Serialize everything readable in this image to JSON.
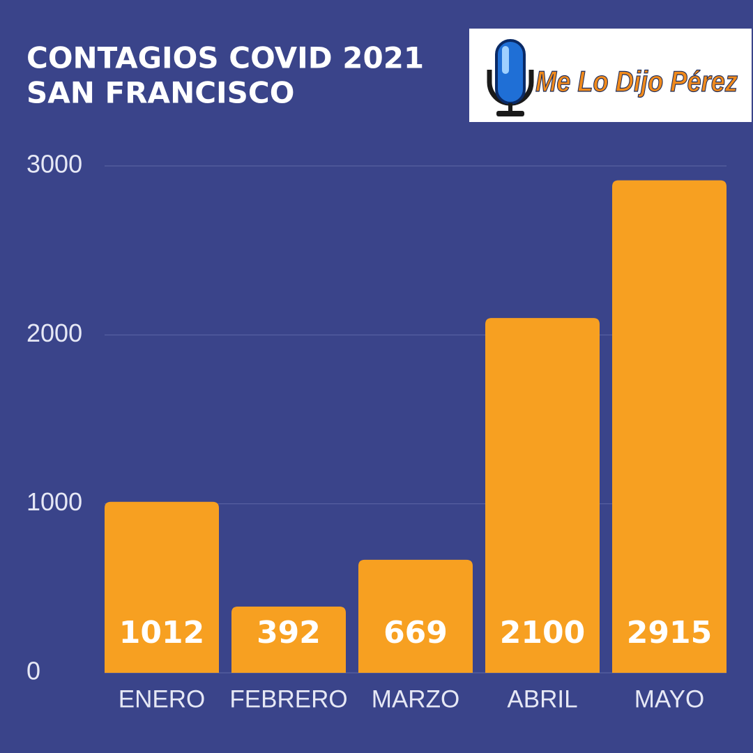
{
  "chart_data": {
    "type": "bar",
    "title": "CONTAGIOS COVID 2021",
    "subtitle": "SAN FRANCISCO",
    "logo_text": "Me Lo Dijo Pérez",
    "categories": [
      "ENERO",
      "FEBRERO",
      "MARZO",
      "ABRIL",
      "MAYO"
    ],
    "values": [
      1012,
      392,
      669,
      2100,
      2915
    ],
    "color": "#f7a021",
    "ylim": [
      0,
      3000
    ],
    "yticks": [
      0,
      1000,
      2000,
      3000
    ],
    "grid": true
  }
}
